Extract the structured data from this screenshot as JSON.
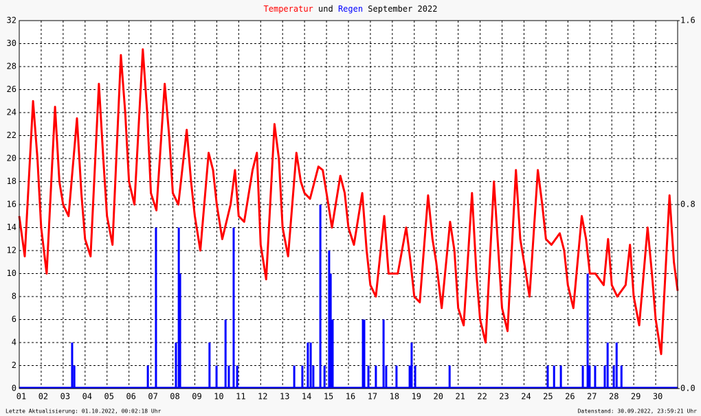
{
  "chart_data": {
    "type": "line",
    "title_join": "und",
    "title_suffix": "September 2022",
    "footer_left": "Letzte Aktualisierung: 01.10.2022, 00:02:18 Uhr",
    "footer_right": "Datenstand: 30.09.2022, 23:59:21 Uhr",
    "xlim": [
      1,
      31
    ],
    "xticks": [
      {
        "value": 1,
        "label": "01"
      },
      {
        "value": 2,
        "label": "02"
      },
      {
        "value": 3,
        "label": "03"
      },
      {
        "value": 4,
        "label": "04"
      },
      {
        "value": 5,
        "label": "05"
      },
      {
        "value": 6,
        "label": "06"
      },
      {
        "value": 7,
        "label": "07"
      },
      {
        "value": 8,
        "label": "08"
      },
      {
        "value": 9,
        "label": "09"
      },
      {
        "value": 10,
        "label": "10"
      },
      {
        "value": 11,
        "label": "11"
      },
      {
        "value": 12,
        "label": "12"
      },
      {
        "value": 13,
        "label": "13"
      },
      {
        "value": 14,
        "label": "14"
      },
      {
        "value": 15,
        "label": "15"
      },
      {
        "value": 16,
        "label": "16"
      },
      {
        "value": 17,
        "label": "17"
      },
      {
        "value": 18,
        "label": "18"
      },
      {
        "value": 19,
        "label": "19"
      },
      {
        "value": 20,
        "label": "20"
      },
      {
        "value": 21,
        "label": "21"
      },
      {
        "value": 22,
        "label": "22"
      },
      {
        "value": 23,
        "label": "23"
      },
      {
        "value": 24,
        "label": "24"
      },
      {
        "value": 25,
        "label": "25"
      },
      {
        "value": 26,
        "label": "26"
      },
      {
        "value": 27,
        "label": "27"
      },
      {
        "value": 28,
        "label": "28"
      },
      {
        "value": 29,
        "label": "29"
      },
      {
        "value": 30,
        "label": "30"
      }
    ],
    "ylim": [
      0,
      32
    ],
    "yticks": [
      0,
      2,
      4,
      6,
      8,
      10,
      12,
      14,
      16,
      18,
      20,
      22,
      24,
      26,
      28,
      30,
      32
    ],
    "y2lim": [
      0,
      1.6
    ],
    "y2ticks": [
      {
        "value": 0,
        "label": "0.0"
      },
      0.8,
      1.6
    ],
    "grid": true,
    "series": [
      {
        "name": "Temperatur",
        "type": "line",
        "color": "#ff0000",
        "x": [
          1,
          1.25,
          1.63,
          1.83,
          2,
          2.25,
          2.63,
          2.83,
          3,
          3.25,
          3.63,
          3.83,
          4,
          4.25,
          4.63,
          4.83,
          5,
          5.25,
          5.63,
          5.83,
          6,
          6.25,
          6.63,
          6.83,
          7,
          7.25,
          7.63,
          7.83,
          8,
          8.25,
          8.63,
          8.83,
          9,
          9.25,
          9.63,
          9.83,
          10,
          10.25,
          10.63,
          10.83,
          11,
          11.25,
          11.63,
          11.83,
          12,
          12.25,
          12.63,
          12.83,
          13,
          13.25,
          13.63,
          13.83,
          14,
          14.25,
          14.63,
          14.83,
          15,
          15.25,
          15.63,
          15.83,
          16,
          16.25,
          16.63,
          16.83,
          17,
          17.25,
          17.63,
          17.83,
          18,
          18.25,
          18.63,
          18.83,
          19,
          19.25,
          19.63,
          19.83,
          20,
          20.25,
          20.63,
          20.83,
          21,
          21.25,
          21.63,
          21.83,
          22,
          22.25,
          22.63,
          22.83,
          23,
          23.25,
          23.63,
          23.83,
          24,
          24.25,
          24.63,
          24.83,
          25,
          25.25,
          25.63,
          25.83,
          26,
          26.25,
          26.63,
          26.83,
          27,
          27.25,
          27.63,
          27.83,
          28,
          28.25,
          28.63,
          28.83,
          29,
          29.25,
          29.63,
          29.83,
          30,
          30.25,
          30.63,
          30.83,
          31
        ],
        "values": [
          15,
          11.5,
          25,
          20,
          14,
          10,
          24.5,
          18,
          16,
          15,
          23.5,
          17,
          13,
          11.5,
          26.5,
          20,
          15,
          12.5,
          29,
          24,
          18,
          16,
          29.5,
          24,
          17,
          15.5,
          26.5,
          22,
          17,
          16,
          22.5,
          18,
          15,
          12,
          20.5,
          19,
          16,
          13,
          16,
          19,
          15,
          14.5,
          19,
          20.5,
          12.5,
          9.5,
          23,
          20,
          14,
          11.5,
          20.5,
          18,
          17,
          16.5,
          19.3,
          19,
          17,
          14,
          18.5,
          17,
          14,
          12.5,
          17,
          12,
          9,
          8,
          15,
          10,
          10,
          10,
          14,
          11,
          8,
          7.5,
          16.8,
          13,
          11,
          7,
          14.5,
          12,
          7,
          5.5,
          17,
          10,
          6,
          4,
          18,
          12,
          7,
          5,
          19,
          13,
          11,
          8,
          19,
          16,
          13,
          12.5,
          13.5,
          12,
          9,
          7,
          15,
          13,
          10,
          10,
          9,
          13,
          9,
          8,
          9,
          12.5,
          8,
          5.5,
          14,
          10,
          6,
          3,
          16.8,
          11,
          8.5
        ]
      },
      {
        "name": "Regen",
        "type": "bar",
        "axis": "y2",
        "color": "#0000ff",
        "x": [
          3.41,
          3.51,
          6.86,
          7.23,
          8.14,
          8.27,
          8.33,
          9.67,
          9.99,
          10.4,
          10.55,
          10.77,
          10.93,
          13.53,
          13.9,
          14.15,
          14.28,
          14.4,
          14.72,
          14.91,
          15.12,
          15.19,
          15.28,
          16.66,
          16.72,
          16.91,
          17.25,
          17.6,
          17.72,
          18.19,
          18.79,
          18.88,
          19.04,
          20.61,
          25.08,
          25.37,
          25.68,
          26.68,
          26.9,
          26.99,
          27.24,
          27.68,
          27.81,
          28.09,
          28.22,
          28.44
        ],
        "values": [
          0.2,
          0.1,
          0.1,
          0.7,
          0.2,
          0.7,
          0.5,
          0.2,
          0.1,
          0.3,
          0.1,
          0.7,
          0.1,
          0.1,
          0.1,
          0.2,
          0.2,
          0.1,
          0.8,
          0.1,
          0.6,
          0.5,
          0.3,
          0.3,
          0.3,
          0.1,
          0.1,
          0.3,
          0.1,
          0.1,
          0.1,
          0.2,
          0.1,
          0.1,
          0.1,
          0.1,
          0.1,
          0.1,
          0.5,
          0.1,
          0.1,
          0.1,
          0.2,
          0.1,
          0.2,
          0.1
        ]
      }
    ]
  }
}
